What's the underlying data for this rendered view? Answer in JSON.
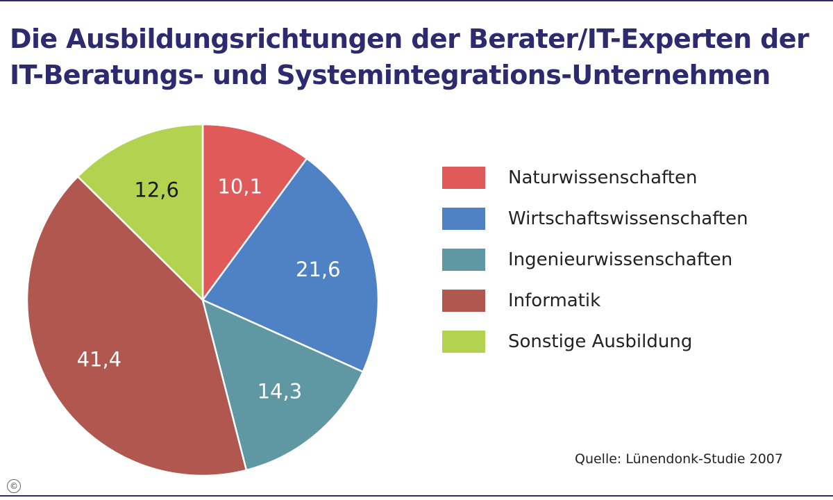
{
  "chart_data": {
    "type": "pie",
    "title": "Die Ausbildungsrichtungen der Berater/IT-Experten der IT-Beratungs- und Systemintegrations-Unternehmen",
    "slices": [
      {
        "name": "Naturwissenschaften",
        "value": 10.1,
        "label": "10,1",
        "color": "#e05a5a",
        "label_color": "#ffffff"
      },
      {
        "name": "Wirtschaftswissenschaften",
        "value": 21.6,
        "label": "21,6",
        "color": "#4f82c4",
        "label_color": "#ffffff"
      },
      {
        "name": "Ingenieurwissenschaften",
        "value": 14.3,
        "label": "14,3",
        "color": "#5f97a3",
        "label_color": "#ffffff"
      },
      {
        "name": "Informatik",
        "value": 41.4,
        "label": "41,4",
        "color": "#b0574f",
        "label_color": "#ffffff"
      },
      {
        "name": "Sonstige Ausbildung",
        "value": 12.6,
        "label": "12,6",
        "color": "#b3d24f",
        "label_color": "#1a1a1a"
      }
    ],
    "legend_position": "right"
  },
  "source": "Quelle: Lünendonk-Studie 2007",
  "copyright_symbol": "©",
  "colors": {
    "title": "#2d2a6e",
    "frame": "#2d2a6e"
  }
}
